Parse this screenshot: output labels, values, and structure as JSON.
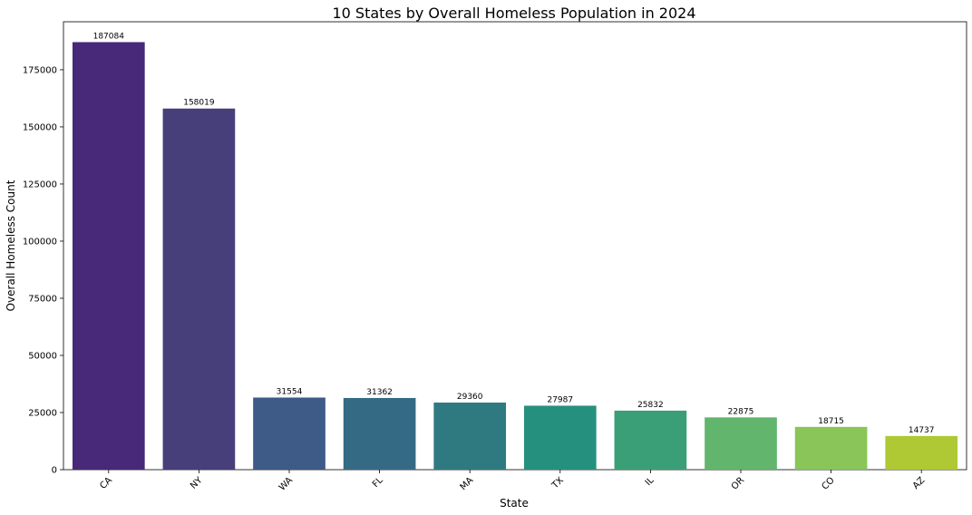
{
  "chart_data": {
    "type": "bar",
    "title": "10 States by Overall Homeless Population in 2024",
    "xlabel": "State",
    "ylabel": "Overall Homeless Count",
    "categories": [
      "CA",
      "NY",
      "WA",
      "FL",
      "MA",
      "TX",
      "IL",
      "OR",
      "CO",
      "AZ"
    ],
    "values": [
      187084,
      158019,
      31554,
      31362,
      29360,
      27987,
      25832,
      22875,
      18715,
      14737
    ],
    "colors": [
      "#482878",
      "#463f7a",
      "#3e5a87",
      "#356a84",
      "#2e7a80",
      "#26907f",
      "#3a9f77",
      "#62b56d",
      "#89c558",
      "#aec934"
    ],
    "ylim": [
      0,
      196000
    ],
    "yticks": [
      0,
      25000,
      50000,
      75000,
      100000,
      125000,
      150000,
      175000
    ],
    "grid": false,
    "legend": "none"
  }
}
